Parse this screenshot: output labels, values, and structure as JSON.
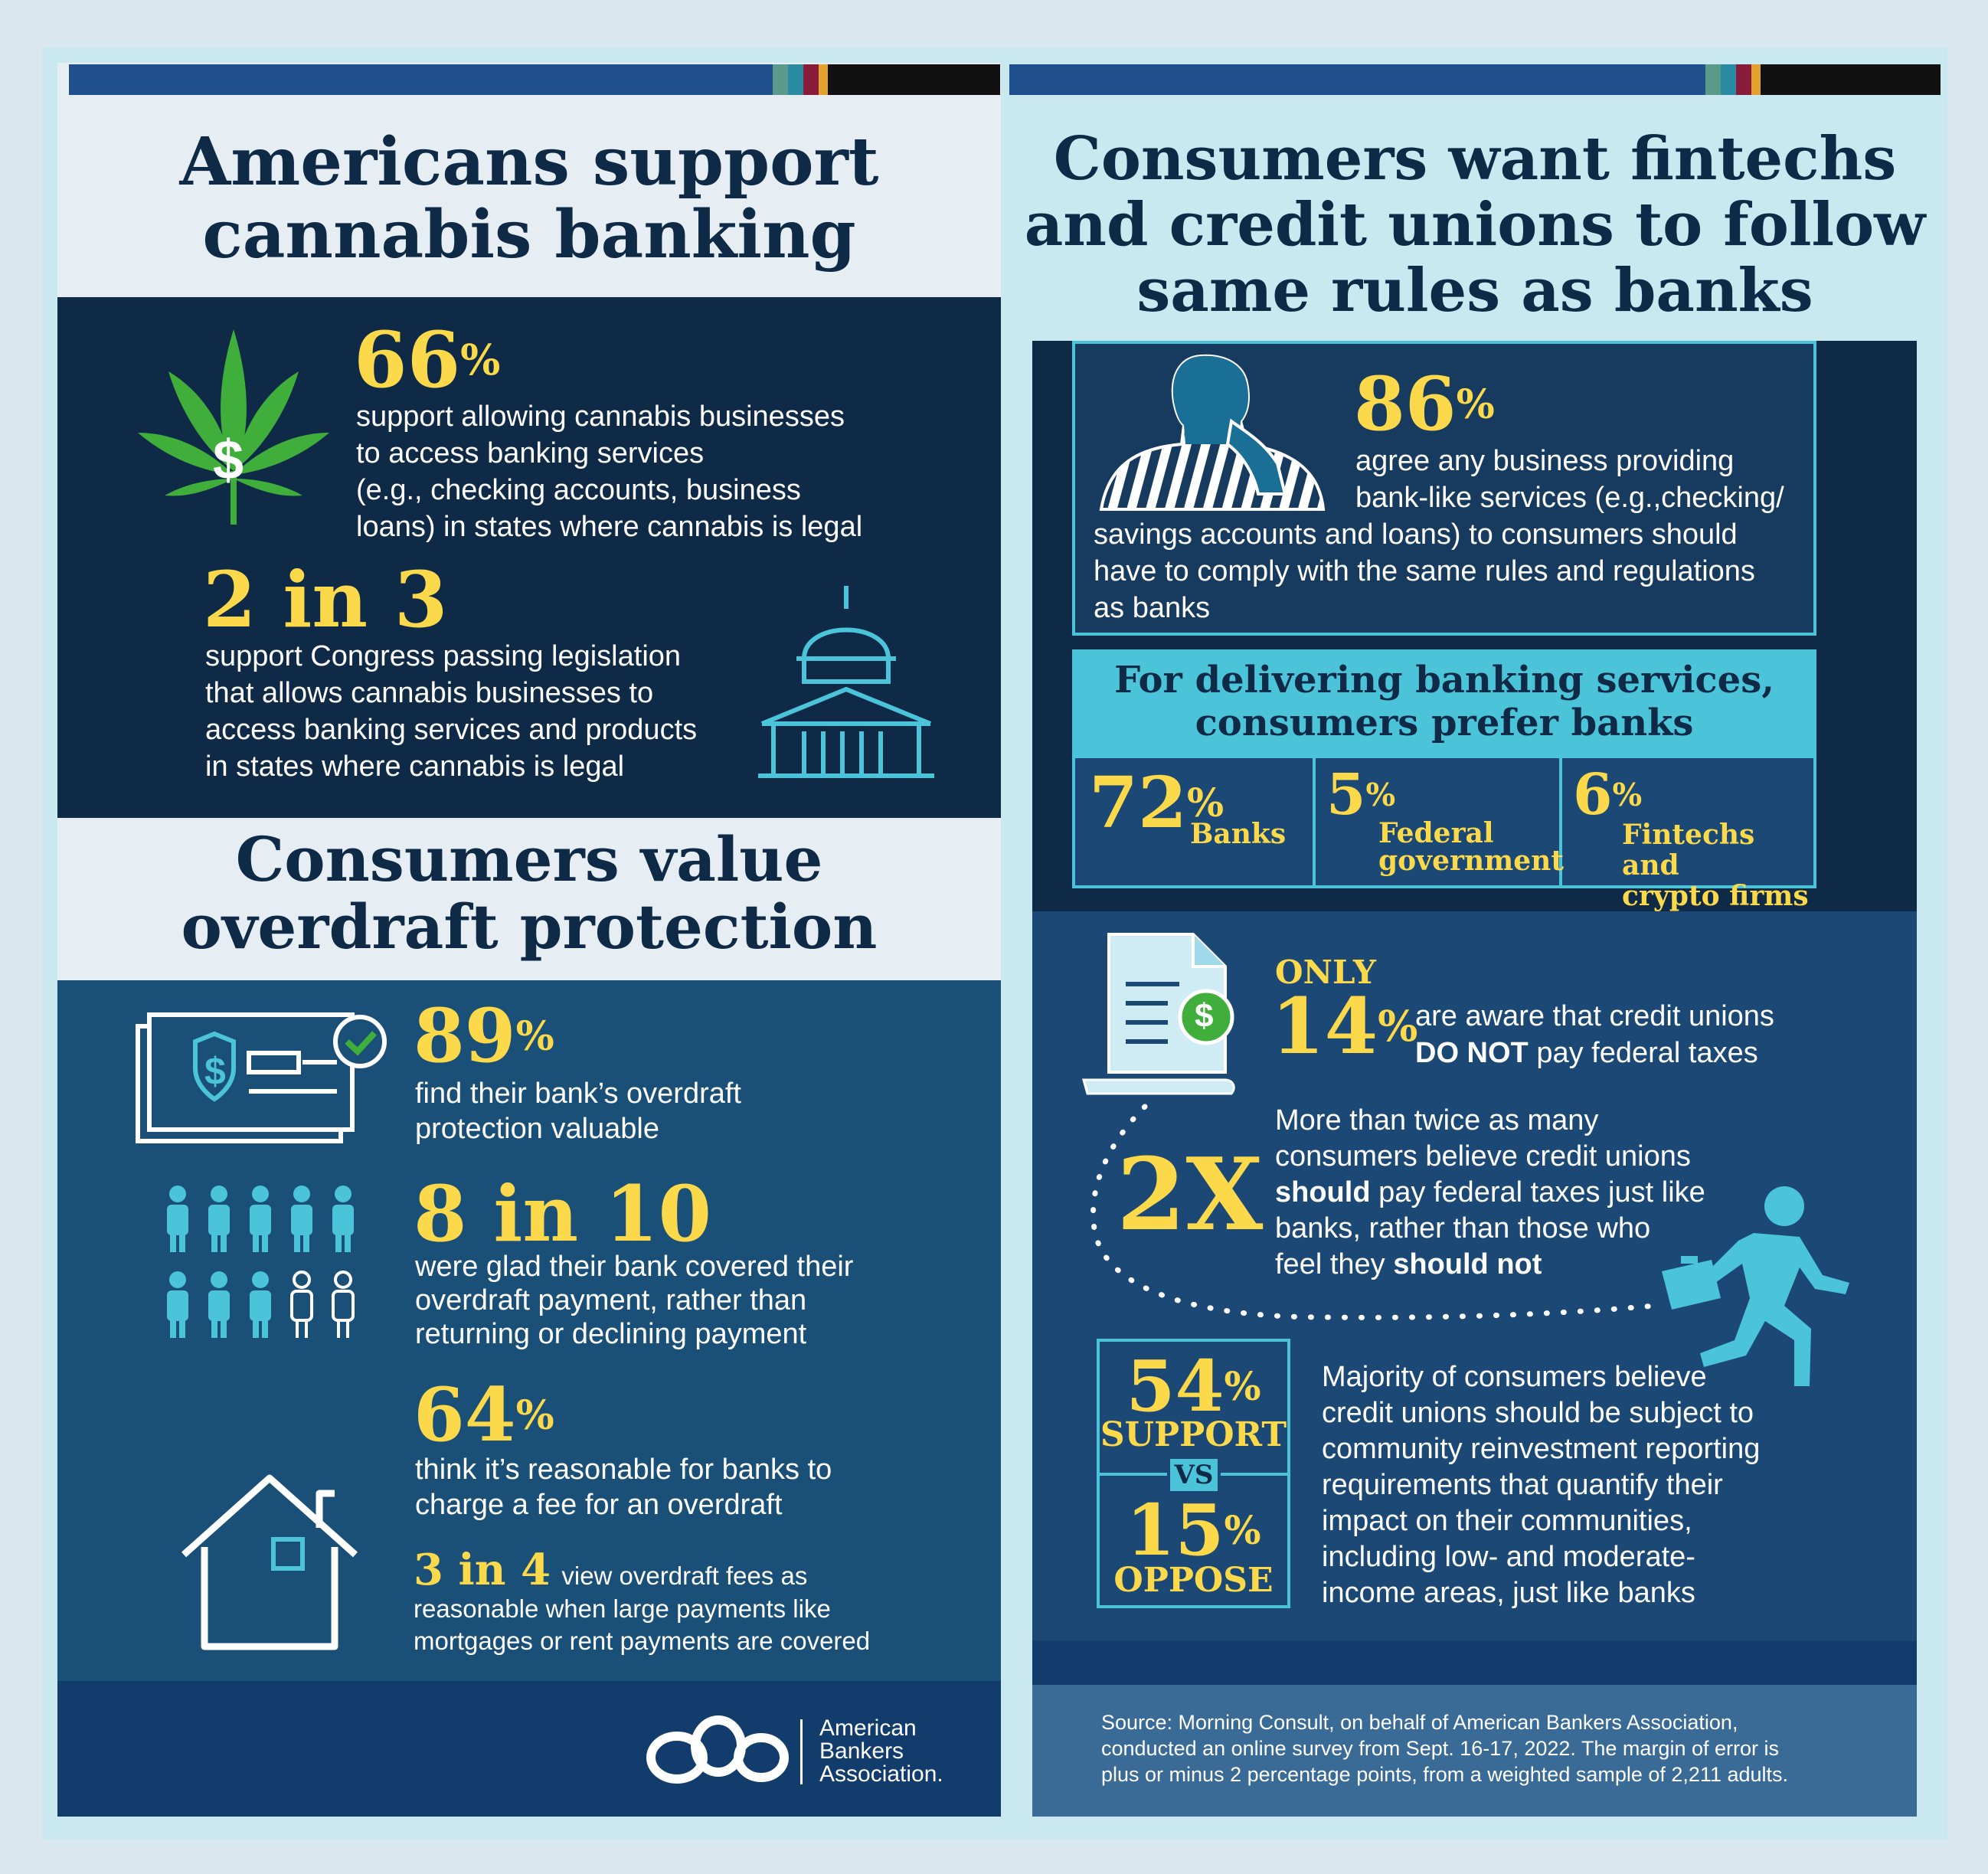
{
  "left": {
    "cannabis": {
      "title_line1": "Americans support",
      "title_line2": "cannabis banking",
      "stat1_value": "66",
      "stat1_pct": "%",
      "stat1_text_1": "support allowing cannabis businesses",
      "stat1_text_2": "to access banking services",
      "stat1_text_3": "(e.g., checking accounts, business",
      "stat1_text_4": "loans) in states where cannabis is legal",
      "stat2_value": "2 in 3",
      "stat2_text_1": "support Congress passing legislation",
      "stat2_text_2": "that allows cannabis businesses to",
      "stat2_text_3": "access banking services and products",
      "stat2_text_4": "in states where cannabis is legal",
      "leaf_symbol": "$"
    },
    "overdraft": {
      "title_line1": "Consumers value",
      "title_line2": "overdraft protection",
      "stat1_value": "89",
      "stat1_pct": "%",
      "stat1_text_1": "find their bank’s overdraft",
      "stat1_text_2": "protection valuable",
      "stat2_value": "8 in 10",
      "stat2_text_1": "were glad their bank covered their",
      "stat2_text_2": "overdraft payment, rather than",
      "stat2_text_3": "returning or declining payment",
      "stat3_value": "64",
      "stat3_pct": "%",
      "stat3_text_1": "think it’s reasonable for banks to",
      "stat3_text_2": "charge a fee for an overdraft",
      "stat4_value": "3 in 4",
      "stat4_text_1": "view overdraft fees as",
      "stat4_text_2": "reasonable when large payments like",
      "stat4_text_3": "mortgages or rent payments are covered",
      "check_symbol": "$"
    },
    "logo": {
      "line1": "American",
      "line2": "Bankers",
      "line3": "Association."
    }
  },
  "right": {
    "title_line1": "Consumers want fintechs",
    "title_line2": "and credit unions to follow",
    "title_line3": "same rules as banks",
    "stat1_value": "86",
    "stat1_pct": "%",
    "stat1_text_1": "agree any business providing",
    "stat1_text_2": "bank-like services (e.g.,checking/",
    "stat1_text_3": "savings accounts and loans) to consumers should",
    "stat1_text_4": "have to comply with the same rules and regulations",
    "stat1_text_5": "as banks",
    "prefer_title_1": "For delivering banking services,",
    "prefer_title_2": "consumers prefer banks",
    "prefer": [
      {
        "value": "72",
        "pct": "%",
        "label_1": "Banks",
        "label_2": ""
      },
      {
        "value": "5",
        "pct": "%",
        "label_1": "Federal",
        "label_2": "government"
      },
      {
        "value": "6",
        "pct": "%",
        "label_1": "Fintechs and",
        "label_2": "crypto firms"
      }
    ],
    "only_label": "ONLY",
    "stat2_value": "14",
    "stat2_pct": "%",
    "stat2_text_1": "are aware that credit unions",
    "stat2_text_2_bold": "DO NOT",
    "stat2_text_2_rest": " pay federal taxes",
    "doc_symbol": "$",
    "stat3_value": "2X",
    "stat3_text_1": "More than twice as many",
    "stat3_text_2": "consumers believe credit unions",
    "stat3_text_3_bold": "should",
    "stat3_text_3_rest": " pay federal taxes just like",
    "stat3_text_4": "banks, rather than those who",
    "stat3_text_5_plain": "feel they ",
    "stat3_text_5_bold": "should not",
    "support_value": "54",
    "support_pct": "%",
    "support_label": "SUPPORT",
    "vs_label": "VS",
    "oppose_value": "15",
    "oppose_pct": "%",
    "oppose_label": "OPPOSE",
    "stat4_text_1": "Majority of consumers believe",
    "stat4_text_2": "credit unions should be subject to",
    "stat4_text_3": "community reinvestment reporting",
    "stat4_text_4": "requirements that quantify their",
    "stat4_text_5": "impact on their communities,",
    "stat4_text_6": "including low- and moderate-",
    "stat4_text_7": "income areas, just like banks",
    "source_1": "Source: Morning Consult, on behalf of American Bankers Association,",
    "source_2": "conducted an online survey from Sept. 16-17, 2022. The margin of error is",
    "source_3": "plus or minus 2 percentage points, from a weighted sample of 2,211 adults."
  },
  "colors": {
    "navy": "#0e2a47",
    "blue": "#1a4f78",
    "yellow": "#fbd94a",
    "cyan": "#4bc4da",
    "green": "#2f9e3a"
  }
}
